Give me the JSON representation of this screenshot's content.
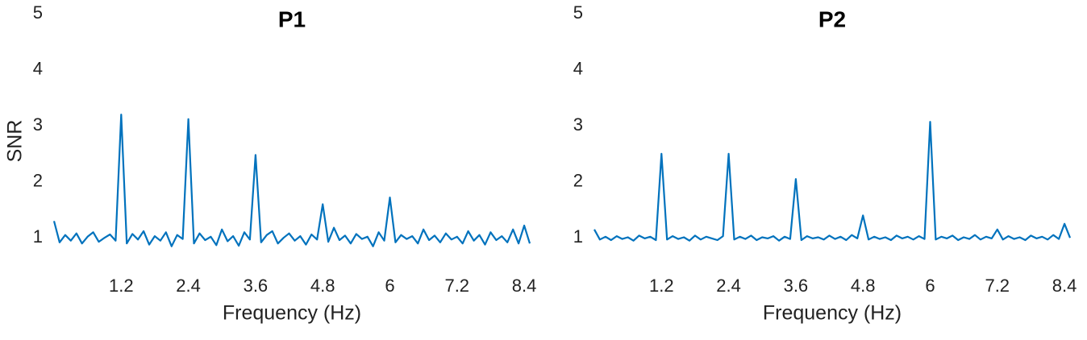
{
  "chart_data": [
    {
      "type": "line",
      "title": "P1",
      "xlabel": "Frequency (Hz)",
      "ylabel": "SNR",
      "xlim": [
        0,
        8.5
      ],
      "ylim": [
        0.5,
        5
      ],
      "xticks": [
        1.2,
        2.4,
        3.6,
        4.8,
        6,
        7.2,
        8.4
      ],
      "yticks": [
        1,
        2,
        3,
        4,
        5
      ],
      "x": [
        0,
        0.1,
        0.2,
        0.3,
        0.4,
        0.5,
        0.6,
        0.7,
        0.8,
        0.9,
        1,
        1.1,
        1.2,
        1.3,
        1.4,
        1.5,
        1.6,
        1.7,
        1.8,
        1.9,
        2,
        2.1,
        2.2,
        2.3,
        2.4,
        2.5,
        2.6,
        2.7,
        2.8,
        2.9,
        3,
        3.1,
        3.2,
        3.3,
        3.4,
        3.5,
        3.6,
        3.7,
        3.8,
        3.9,
        4,
        4.1,
        4.2,
        4.3,
        4.4,
        4.5,
        4.6,
        4.7,
        4.8,
        4.9,
        5,
        5.1,
        5.2,
        5.3,
        5.4,
        5.5,
        5.6,
        5.7,
        5.8,
        5.9,
        6,
        6.1,
        6.2,
        6.3,
        6.4,
        6.5,
        6.6,
        6.7,
        6.8,
        6.9,
        7,
        7.1,
        7.2,
        7.3,
        7.4,
        7.5,
        7.6,
        7.7,
        7.8,
        7.9,
        8,
        8.1,
        8.2,
        8.3,
        8.4,
        8.5
      ],
      "series": [
        {
          "color": "#0072bd",
          "values": [
            1.3,
            0.92,
            1.05,
            0.95,
            1.08,
            0.9,
            1.02,
            1.1,
            0.93,
            1.0,
            1.06,
            0.95,
            3.2,
            0.9,
            1.07,
            0.97,
            1.12,
            0.88,
            1.03,
            0.95,
            1.1,
            0.85,
            1.05,
            0.98,
            3.12,
            0.9,
            1.08,
            0.96,
            1.02,
            0.87,
            1.15,
            0.94,
            1.03,
            0.86,
            1.1,
            0.97,
            2.48,
            0.92,
            1.05,
            1.12,
            0.9,
            1.0,
            1.08,
            0.95,
            1.03,
            0.88,
            1.06,
            0.97,
            1.6,
            0.93,
            1.18,
            0.96,
            1.04,
            0.9,
            1.07,
            0.98,
            1.02,
            0.85,
            1.1,
            0.95,
            1.72,
            0.92,
            1.05,
            0.98,
            1.03,
            0.9,
            1.15,
            0.96,
            1.04,
            0.92,
            1.08,
            0.97,
            1.02,
            0.9,
            1.12,
            0.95,
            1.05,
            0.88,
            1.1,
            0.96,
            1.03,
            0.92,
            1.15,
            0.9,
            1.22,
            0.9
          ]
        }
      ]
    },
    {
      "type": "line",
      "title": "P2",
      "xlabel": "Frequency (Hz)",
      "xlim": [
        0,
        8.5
      ],
      "ylim": [
        0.5,
        5
      ],
      "xticks": [
        1.2,
        2.4,
        3.6,
        4.8,
        6,
        7.2,
        8.4
      ],
      "yticks": [
        1,
        2,
        3,
        4,
        5
      ],
      "x": [
        0,
        0.1,
        0.2,
        0.3,
        0.4,
        0.5,
        0.6,
        0.7,
        0.8,
        0.9,
        1,
        1.1,
        1.2,
        1.3,
        1.4,
        1.5,
        1.6,
        1.7,
        1.8,
        1.9,
        2,
        2.1,
        2.2,
        2.3,
        2.4,
        2.5,
        2.6,
        2.7,
        2.8,
        2.9,
        3,
        3.1,
        3.2,
        3.3,
        3.4,
        3.5,
        3.6,
        3.7,
        3.8,
        3.9,
        4,
        4.1,
        4.2,
        4.3,
        4.4,
        4.5,
        4.6,
        4.7,
        4.8,
        4.9,
        5,
        5.1,
        5.2,
        5.3,
        5.4,
        5.5,
        5.6,
        5.7,
        5.8,
        5.9,
        6,
        6.1,
        6.2,
        6.3,
        6.4,
        6.5,
        6.6,
        6.7,
        6.8,
        6.9,
        7,
        7.1,
        7.2,
        7.3,
        7.4,
        7.5,
        7.6,
        7.7,
        7.8,
        7.9,
        8,
        8.1,
        8.2,
        8.3,
        8.4,
        8.5
      ],
      "series": [
        {
          "color": "#0072bd",
          "values": [
            1.15,
            0.97,
            1.02,
            0.96,
            1.03,
            0.98,
            1.01,
            0.95,
            1.04,
            0.99,
            1.02,
            0.96,
            2.5,
            0.97,
            1.03,
            0.98,
            1.01,
            0.95,
            1.04,
            0.97,
            1.02,
            0.99,
            0.96,
            1.03,
            2.5,
            0.97,
            1.02,
            0.98,
            1.04,
            0.96,
            1.01,
            0.99,
            1.03,
            0.95,
            1.02,
            0.98,
            2.05,
            0.96,
            1.03,
            0.99,
            1.01,
            0.97,
            1.04,
            0.98,
            1.02,
            0.96,
            1.05,
            0.99,
            1.4,
            0.97,
            1.02,
            0.98,
            1.01,
            0.96,
            1.04,
            0.99,
            1.02,
            0.97,
            1.03,
            0.98,
            3.07,
            0.97,
            1.02,
            0.99,
            1.04,
            0.96,
            1.01,
            0.98,
            1.05,
            0.97,
            1.02,
            0.99,
            1.15,
            0.97,
            1.03,
            0.98,
            1.01,
            0.96,
            1.04,
            0.99,
            1.02,
            0.97,
            1.05,
            0.98,
            1.25,
            1.0
          ]
        }
      ]
    }
  ]
}
